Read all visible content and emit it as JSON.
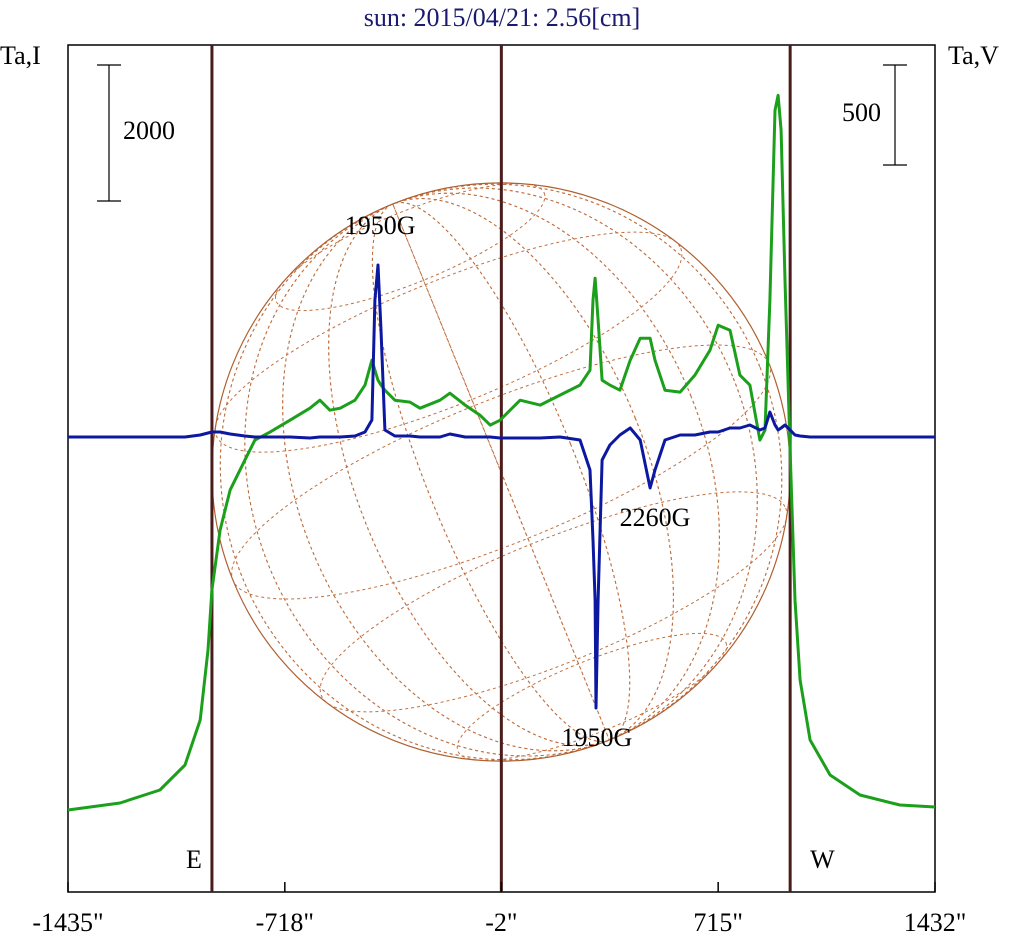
{
  "chart_data": {
    "type": "line",
    "title": "sun: 2015/04/21: 2.56[cm]",
    "y_label": "Ta,I",
    "y2_label": "Ta,V",
    "xlim": [
      -1435,
      1432
    ],
    "xticks": [
      {
        "value": -1435,
        "label": "-1435\""
      },
      {
        "value": -718,
        "label": "-718\""
      },
      {
        "value": -2,
        "label": "-2\""
      },
      {
        "value": 715,
        "label": "715\""
      },
      {
        "value": 1432,
        "label": "1432\""
      }
    ],
    "ylim": [
      -1206,
      11250
    ],
    "y2lim": [
      -2275,
      1960
    ],
    "scale_bars": [
      {
        "value": 2000,
        "axis": "y"
      },
      {
        "value": 500,
        "axis": "y2"
      }
    ],
    "vlines": [
      {
        "x": -959,
        "label": "E"
      },
      {
        "x": -2
      },
      {
        "x": 953,
        "label": "W"
      }
    ],
    "annotations": [
      {
        "text": "1950G",
        "x": -403,
        "y": 1045
      },
      {
        "text": "2260G",
        "x": 506,
        "y": -415
      },
      {
        "text": "1950G",
        "x": 314,
        "y": -1515
      }
    ],
    "x": [
      -1435,
      -1263,
      -1131,
      -1048,
      -998,
      -972,
      -959,
      -932,
      -899,
      -850,
      -817,
      -767,
      -701,
      -635,
      -602,
      -569,
      -535,
      -486,
      -453,
      -430,
      -420,
      -410,
      -400,
      -387,
      -354,
      -304,
      -271,
      -205,
      -172,
      -122,
      -73,
      -39,
      -6,
      60,
      126,
      192,
      258,
      291,
      301,
      308,
      311,
      318,
      331,
      357,
      390,
      424,
      457,
      490,
      506,
      539,
      589,
      638,
      688,
      715,
      754,
      787,
      820,
      853,
      870,
      886,
      903,
      913,
      923,
      936,
      953,
      969,
      986,
      1019,
      1085,
      1184,
      1316,
      1432
    ],
    "series": [
      {
        "name": "Ta,I",
        "color": "#1ca01c",
        "values": [
          0,
          103,
          294,
          662,
          1323,
          2352,
          3234,
          4116,
          4704,
          5145,
          5439,
          5557,
          5733,
          5909,
          6027,
          5880,
          5909,
          6027,
          6248,
          6615,
          6468,
          6321,
          6248,
          6174,
          6027,
          5998,
          5909,
          6027,
          6130,
          5954,
          5807,
          5660,
          5733,
          6027,
          5954,
          6101,
          6248,
          6468,
          7497,
          7820,
          7644,
          7203,
          6321,
          6248,
          6174,
          6615,
          6938,
          6938,
          6615,
          6174,
          6145,
          6395,
          6762,
          7130,
          7056,
          6395,
          6248,
          5439,
          5586,
          7497,
          10290,
          10511,
          9996,
          7791,
          5292,
          3087,
          1911,
          1029,
          515,
          221,
          74,
          44
        ]
      },
      {
        "name": "Ta,V",
        "color": "#0c18a0",
        "axis": "y2",
        "values": [
          0,
          0,
          0,
          0,
          10,
          20,
          25,
          25,
          15,
          5,
          0,
          0,
          0,
          -5,
          0,
          0,
          0,
          5,
          25,
          85,
          685,
          860,
          535,
          35,
          5,
          5,
          0,
          0,
          15,
          0,
          0,
          0,
          -5,
          -5,
          -5,
          0,
          -15,
          -165,
          -515,
          -815,
          -1355,
          -815,
          -115,
          -40,
          10,
          45,
          -15,
          -255,
          -165,
          -15,
          10,
          10,
          25,
          25,
          45,
          45,
          60,
          35,
          45,
          125,
          60,
          35,
          45,
          60,
          35,
          10,
          5,
          0,
          0,
          0,
          0,
          0
        ]
      }
    ]
  }
}
